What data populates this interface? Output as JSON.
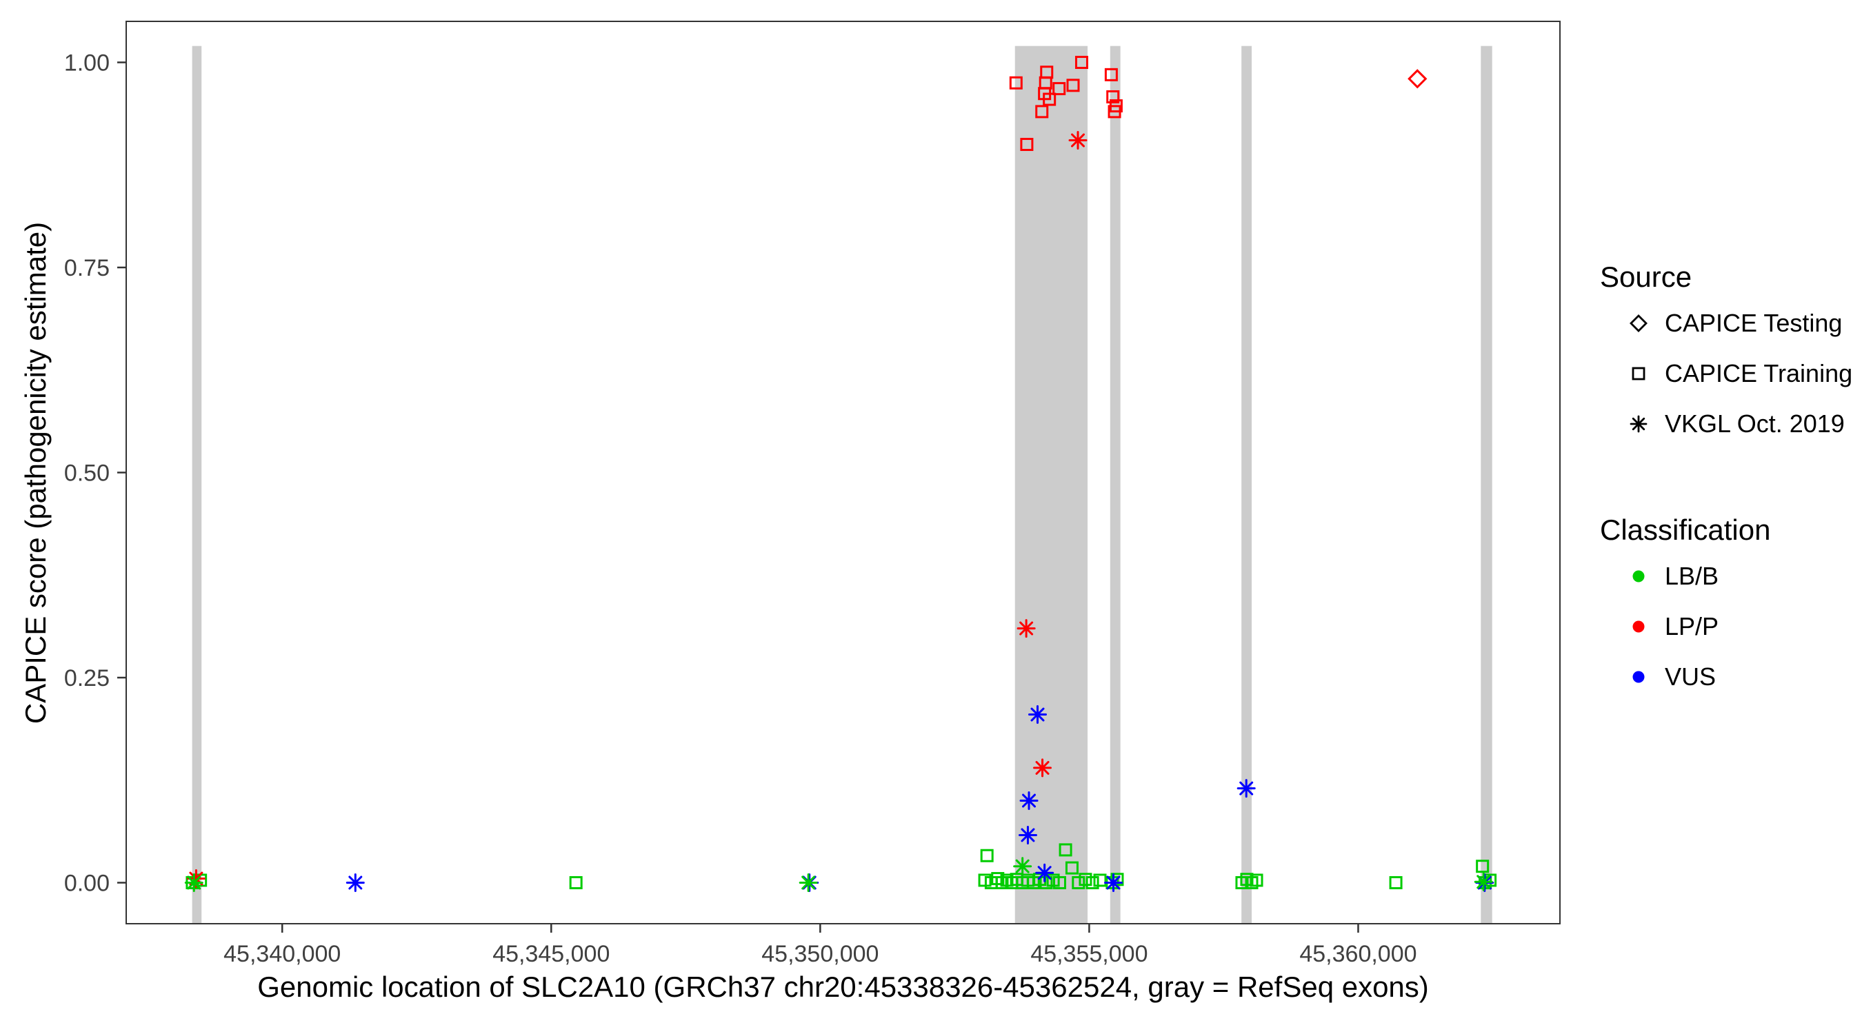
{
  "chart_data": {
    "type": "scatter",
    "title": "",
    "xlabel": "Genomic location of SLC2A10 (GRCh37 chr20:45338326-45362524, gray = RefSeq exons)",
    "ylabel": "CAPICE score (pathogenicity estimate)",
    "xlim": [
      45337100,
      45363750
    ],
    "ylim": [
      -0.05,
      1.05
    ],
    "grid": "off",
    "x_ticks": [
      {
        "value": 45340000,
        "label": "45,340,000"
      },
      {
        "value": 45345000,
        "label": "45,345,000"
      },
      {
        "value": 45350000,
        "label": "45,350,000"
      },
      {
        "value": 45355000,
        "label": "45,355,000"
      },
      {
        "value": 45360000,
        "label": "45,360,000"
      }
    ],
    "y_ticks": [
      {
        "value": 0.0,
        "label": "0.00"
      },
      {
        "value": 0.25,
        "label": "0.25"
      },
      {
        "value": 0.5,
        "label": "0.50"
      },
      {
        "value": 0.75,
        "label": "0.75"
      },
      {
        "value": 1.0,
        "label": "1.00"
      }
    ],
    "exon_color": "#CCCCCC",
    "exon_top_value": 1.02,
    "exons": [
      [
        45338326,
        45338500
      ],
      [
        45353620,
        45354970
      ],
      [
        45355390,
        45355580
      ],
      [
        45357830,
        45358020
      ],
      [
        45362280,
        45362490
      ]
    ],
    "classification_colors": {
      "LB/B": "#00CC00",
      "LP/P": "#FF0000",
      "VUS": "#0000FF"
    },
    "series": [
      {
        "source": "CAPICE Testing",
        "classification": "LP/P",
        "shape": "diamond",
        "color": "#FF0000",
        "points": [
          [
            45361100,
            0.98
          ]
        ]
      },
      {
        "source": "CAPICE Training",
        "classification": "LP/P",
        "shape": "square",
        "color": "#FF0000",
        "points": [
          [
            45353640,
            0.975
          ],
          [
            45353840,
            0.9
          ],
          [
            45354120,
            0.94
          ],
          [
            45354170,
            0.962
          ],
          [
            45354190,
            0.975
          ],
          [
            45354210,
            0.988
          ],
          [
            45354260,
            0.955
          ],
          [
            45354440,
            0.968
          ],
          [
            45354700,
            0.972
          ],
          [
            45354860,
            1.0
          ],
          [
            45355410,
            0.985
          ],
          [
            45355440,
            0.958
          ],
          [
            45355470,
            0.94
          ],
          [
            45355500,
            0.947
          ]
        ]
      },
      {
        "source": "CAPICE Training",
        "classification": "LB/B",
        "shape": "square",
        "color": "#00CC00",
        "points": [
          [
            45338330,
            0.0
          ],
          [
            45338480,
            0.003
          ],
          [
            45345460,
            0.0
          ],
          [
            45353060,
            0.003
          ],
          [
            45353100,
            0.033
          ],
          [
            45353180,
            0.0
          ],
          [
            45353300,
            0.005
          ],
          [
            45353380,
            0.0
          ],
          [
            45353470,
            0.003
          ],
          [
            45353560,
            0.0
          ],
          [
            45353650,
            0.004
          ],
          [
            45353760,
            0.0
          ],
          [
            45353860,
            0.003
          ],
          [
            45353960,
            0.0
          ],
          [
            45354080,
            0.004
          ],
          [
            45354200,
            0.0
          ],
          [
            45354330,
            0.003
          ],
          [
            45354450,
            0.0
          ],
          [
            45354560,
            0.04
          ],
          [
            45354680,
            0.018
          ],
          [
            45354800,
            0.0
          ],
          [
            45354930,
            0.004
          ],
          [
            45355060,
            0.0
          ],
          [
            45355200,
            0.003
          ],
          [
            45355430,
            0.0
          ],
          [
            45355520,
            0.004
          ],
          [
            45357840,
            0.0
          ],
          [
            45357930,
            0.004
          ],
          [
            45358020,
            0.0
          ],
          [
            45358110,
            0.003
          ],
          [
            45360700,
            0.0
          ],
          [
            45362310,
            0.02
          ],
          [
            45362360,
            0.0
          ],
          [
            45362450,
            0.003
          ]
        ]
      },
      {
        "source": "VKGL Oct. 2019",
        "classification": "LP/P",
        "shape": "asterisk",
        "color": "#FF0000",
        "points": [
          [
            45354790,
            0.905
          ],
          [
            45353830,
            0.31
          ],
          [
            45354130,
            0.14
          ],
          [
            45338400,
            0.005
          ]
        ]
      },
      {
        "source": "VKGL Oct. 2019",
        "classification": "VUS",
        "shape": "asterisk",
        "color": "#0000FF",
        "points": [
          [
            45354040,
            0.205
          ],
          [
            45353880,
            0.1
          ],
          [
            45353860,
            0.058
          ],
          [
            45354170,
            0.012
          ],
          [
            45357920,
            0.115
          ],
          [
            45341360,
            0.0
          ],
          [
            45349800,
            0.0
          ],
          [
            45355450,
            0.0
          ],
          [
            45362350,
            0.0
          ]
        ]
      },
      {
        "source": "VKGL Oct. 2019",
        "classification": "LB/B",
        "shape": "asterisk",
        "color": "#00CC00",
        "points": [
          [
            45349780,
            0.0
          ],
          [
            45353760,
            0.02
          ],
          [
            45362330,
            0.001
          ],
          [
            45338360,
            0.0
          ]
        ]
      }
    ],
    "legend": {
      "position": "right",
      "source": {
        "title": "Source",
        "items": [
          {
            "shape": "diamond",
            "label": "CAPICE Testing"
          },
          {
            "shape": "square",
            "label": "CAPICE Training"
          },
          {
            "shape": "asterisk",
            "label": "VKGL Oct. 2019"
          }
        ]
      },
      "classification": {
        "title": "Classification",
        "items": [
          {
            "color": "#00CC00",
            "label": "LB/B"
          },
          {
            "color": "#FF0000",
            "label": "LP/P"
          },
          {
            "color": "#0000FF",
            "label": "VUS"
          }
        ]
      }
    },
    "panel": {
      "border_color": "#333333",
      "tick_color": "#333333",
      "tick_label_color": "#404040"
    }
  }
}
